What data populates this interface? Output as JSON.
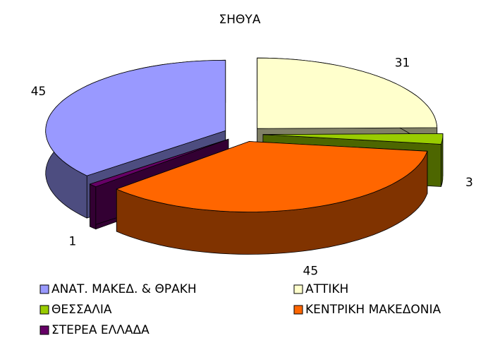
{
  "chart_data": {
    "type": "pie3d",
    "title": "ΣΗΘΥΑ",
    "categories": [
      "ΑΝΑΤ. ΜΑΚΕΔ. & ΘΡΑΚΗ",
      "ΑΤΤΙΚΗ",
      "ΘΕΣΣΑΛΙΑ",
      "ΚΕΝΤΡΙΚΗ ΜΑΚΕΔΟΝΙΑ",
      "ΣΤΕΡΕΑ ΕΛΛΑΔΑ"
    ],
    "values": [
      45,
      31,
      3,
      45,
      1
    ],
    "colors": [
      "#9999ff",
      "#ffffcc",
      "#99cc00",
      "#ff6600",
      "#660066"
    ],
    "legend": "bottom"
  }
}
